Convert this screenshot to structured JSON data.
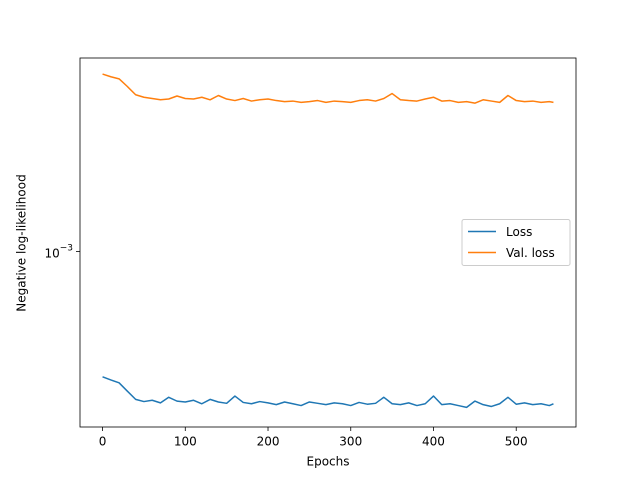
{
  "chart_data": {
    "type": "line",
    "xlabel": "Epochs",
    "ylabel": "Negative log-likelihood",
    "x": [
      0,
      10,
      20,
      30,
      40,
      50,
      60,
      70,
      80,
      90,
      100,
      110,
      120,
      130,
      140,
      150,
      160,
      170,
      180,
      190,
      200,
      210,
      220,
      230,
      240,
      250,
      260,
      270,
      280,
      290,
      300,
      310,
      320,
      330,
      340,
      350,
      360,
      370,
      380,
      390,
      400,
      410,
      420,
      430,
      440,
      450,
      460,
      470,
      480,
      490,
      500,
      510,
      520,
      530,
      540,
      545
    ],
    "series": [
      {
        "name": "Loss",
        "color": "#1f77b4",
        "values": [
          0.000309,
          0.0003,
          0.000292,
          0.00027,
          0.00025,
          0.000245,
          0.000248,
          0.000242,
          0.000255,
          0.000246,
          0.000244,
          0.000248,
          0.00024,
          0.00025,
          0.000244,
          0.000241,
          0.000258,
          0.000243,
          0.00024,
          0.000245,
          0.000242,
          0.000238,
          0.000244,
          0.00024,
          0.000236,
          0.000244,
          0.000241,
          0.000238,
          0.000242,
          0.00024,
          0.000236,
          0.000243,
          0.000239,
          0.000241,
          0.000255,
          0.00024,
          0.000238,
          0.000242,
          0.000236,
          0.00024,
          0.000258,
          0.000238,
          0.00024,
          0.000236,
          0.000232,
          0.000246,
          0.000238,
          0.000234,
          0.00024,
          0.000255,
          0.000239,
          0.000242,
          0.000238,
          0.00024,
          0.000236,
          0.00024
        ]
      },
      {
        "name": "Val. loss",
        "color": "#ff7f0e",
        "values": [
          0.00528,
          0.00515,
          0.00505,
          0.0047,
          0.00435,
          0.00425,
          0.0042,
          0.00415,
          0.00418,
          0.0043,
          0.0042,
          0.00418,
          0.00425,
          0.00415,
          0.00432,
          0.00418,
          0.00412,
          0.0042,
          0.0041,
          0.00415,
          0.00418,
          0.00412,
          0.00408,
          0.0041,
          0.00405,
          0.00408,
          0.00412,
          0.00405,
          0.0041,
          0.00408,
          0.00405,
          0.00412,
          0.00415,
          0.0041,
          0.0042,
          0.0044,
          0.00415,
          0.00412,
          0.0041,
          0.00418,
          0.00425,
          0.0041,
          0.00412,
          0.00405,
          0.00408,
          0.00402,
          0.00415,
          0.0041,
          0.00405,
          0.00432,
          0.00412,
          0.00408,
          0.0041,
          0.00405,
          0.00408,
          0.00405
        ]
      }
    ],
    "xlim": [
      -27.25,
      572.25
    ],
    "xticks": [
      0,
      100,
      200,
      300,
      400,
      500
    ],
    "ylim": [
      0.000193,
      0.00614
    ],
    "yscale": "log",
    "yticks": [
      {
        "value": 0.001,
        "label": "10",
        "exponent": "−3"
      }
    ],
    "legend": "center right"
  }
}
